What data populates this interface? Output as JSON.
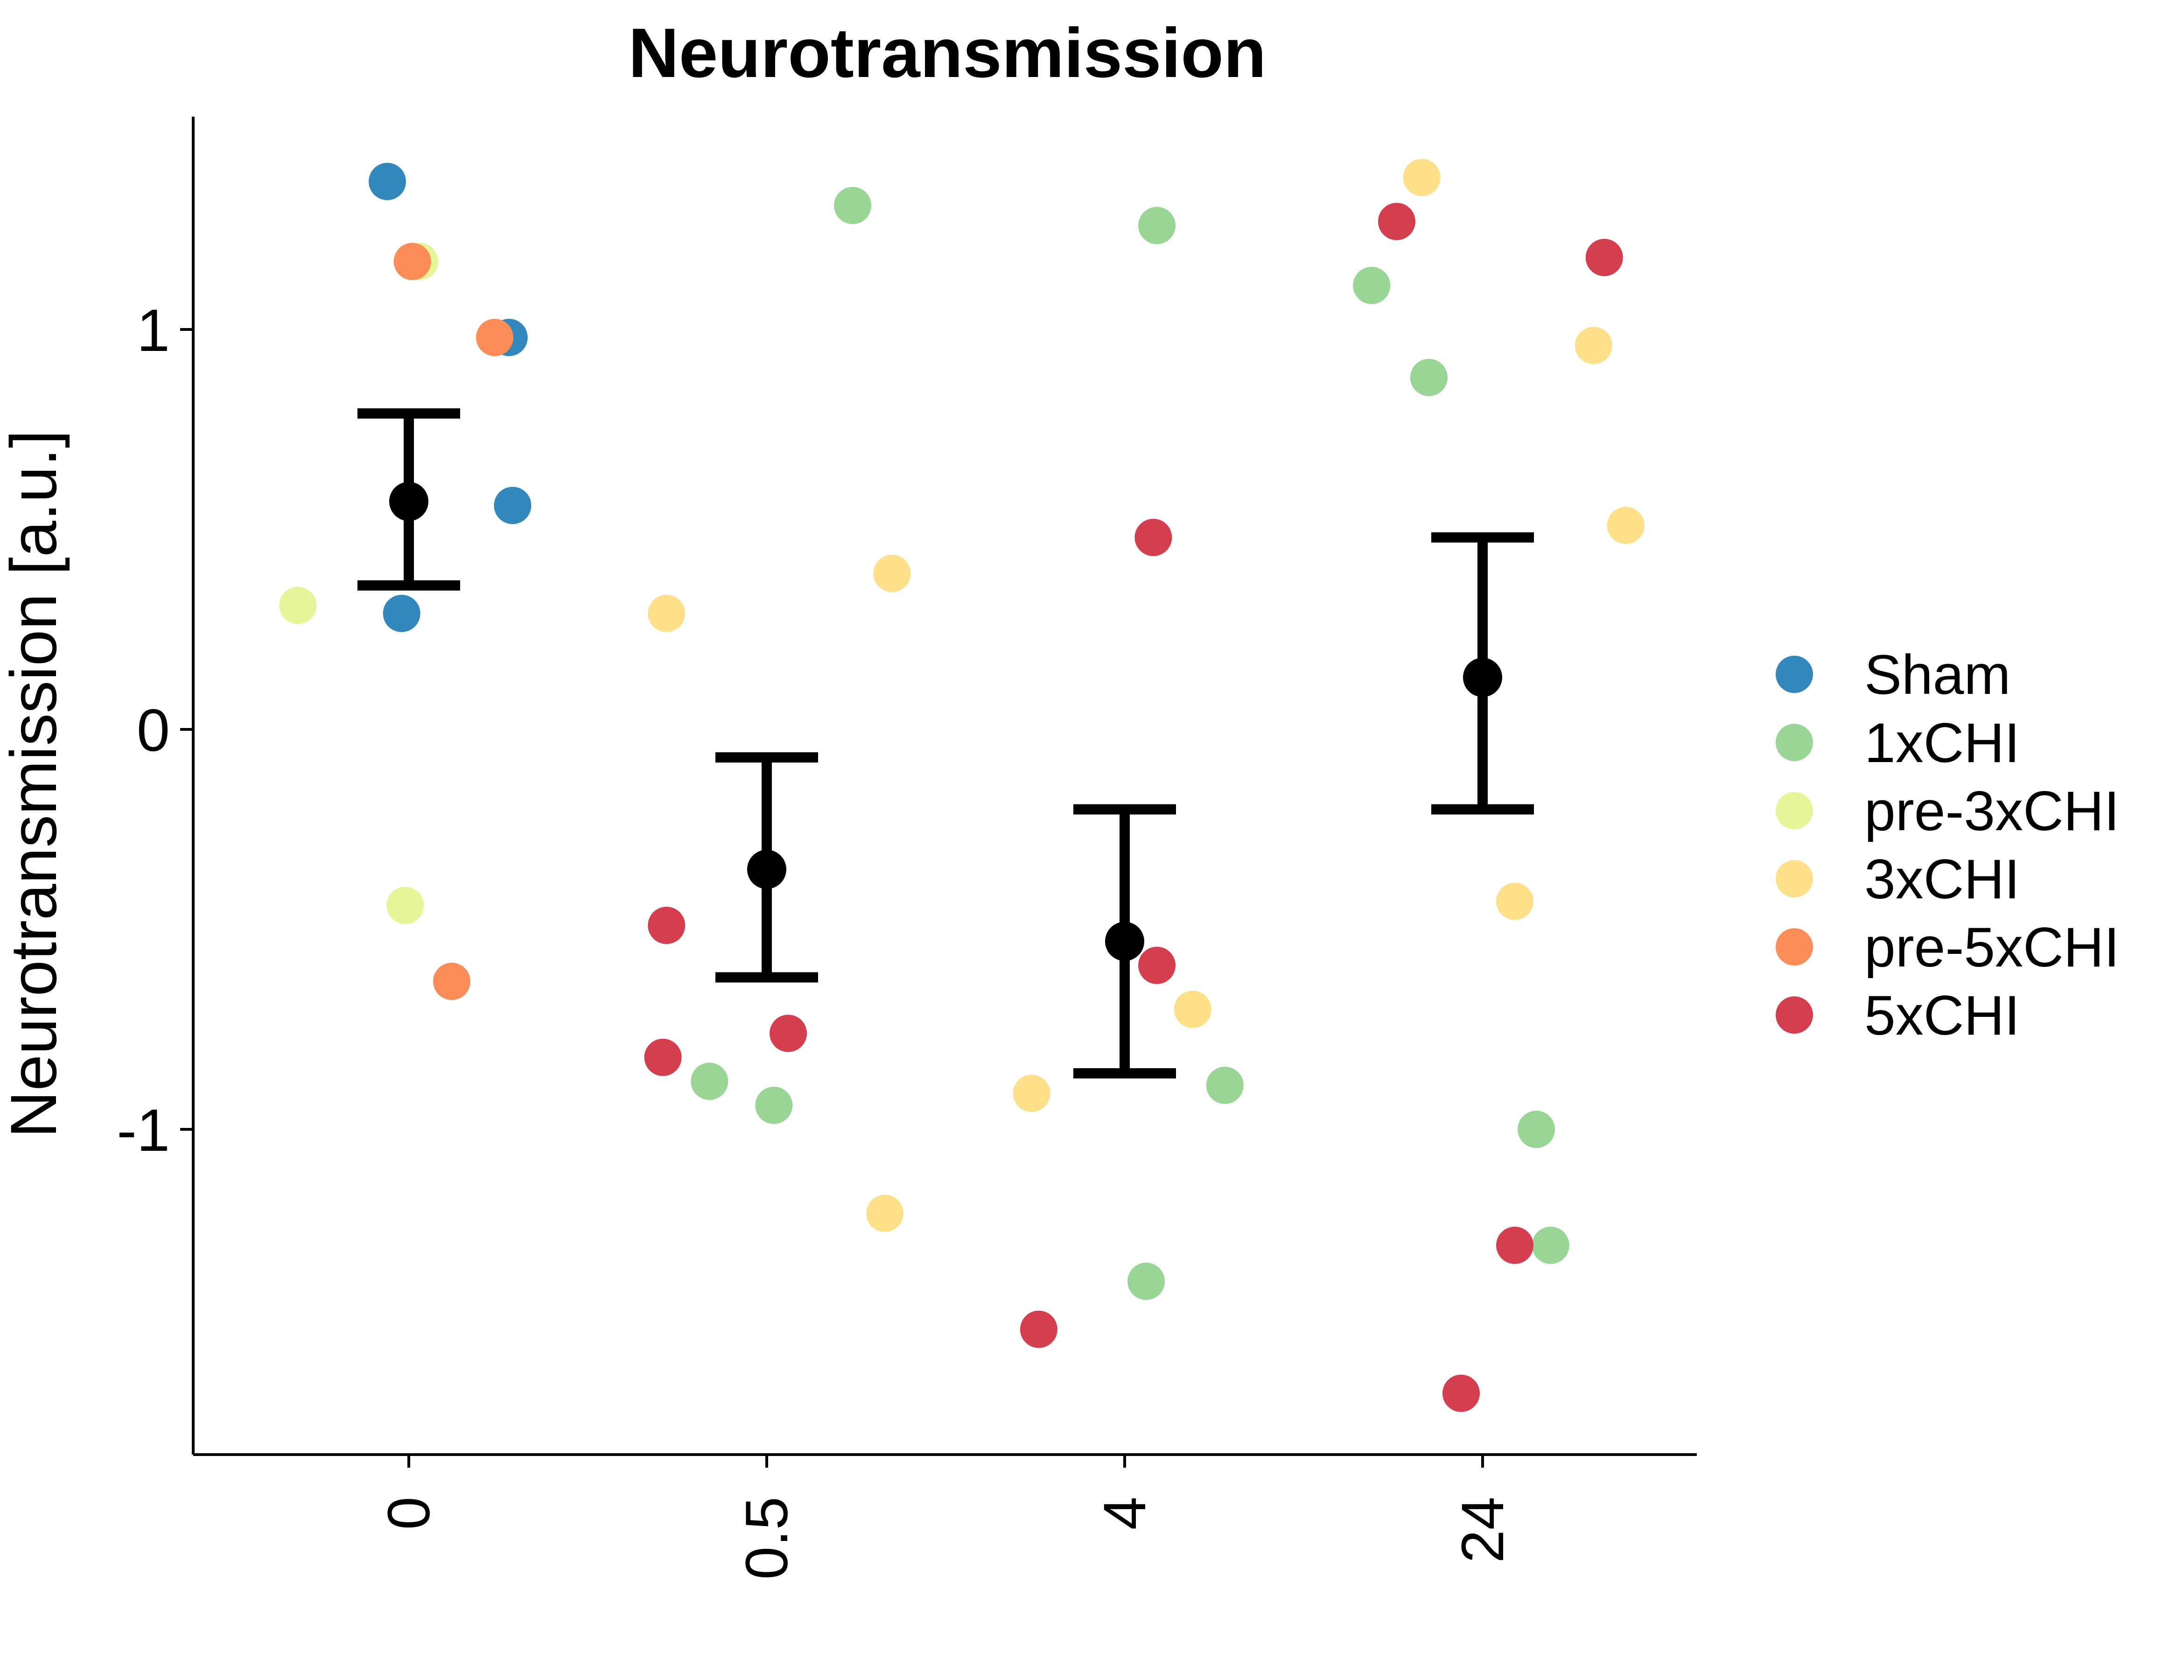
{
  "chart_data": {
    "type": "scatter",
    "title": "Neurotransmission",
    "xlabel": "",
    "ylabel": "Neurotransmission [a.u.]",
    "categories": [
      "0",
      "0.5",
      "4",
      "24"
    ],
    "y_ticks": [
      1,
      0,
      -1
    ],
    "y_tick_labels": [
      "1",
      "0",
      "-1"
    ],
    "ylim": [
      -1.82,
      1.53
    ],
    "legend_position": "right",
    "colors": {
      "Sham": "#3288BD",
      "1xCHI": "#99D594",
      "pre-3xCHI": "#E6F598",
      "3xCHI": "#FEE08B",
      "pre-5xCHI": "#FC8D59",
      "5xCHI": "#D53E4F",
      "summary": "#000000"
    },
    "groups": [
      "Sham",
      "1xCHI",
      "pre-3xCHI",
      "3xCHI",
      "pre-5xCHI",
      "5xCHI"
    ],
    "points": [
      {
        "group": "Sham",
        "x": -0.06,
        "y": 1.37
      },
      {
        "group": "pre-3xCHI",
        "x": 0.03,
        "y": 1.17
      },
      {
        "group": "pre-5xCHI",
        "x": 0.01,
        "y": 1.17
      },
      {
        "group": "Sham",
        "x": 0.28,
        "y": 0.98
      },
      {
        "group": "pre-5xCHI",
        "x": 0.24,
        "y": 0.98
      },
      {
        "group": "Sham",
        "x": 0.29,
        "y": 0.56
      },
      {
        "group": "pre-3xCHI",
        "x": -0.31,
        "y": 0.31
      },
      {
        "group": "Sham",
        "x": -0.02,
        "y": 0.29
      },
      {
        "group": "pre-3xCHI",
        "x": -0.01,
        "y": -0.44
      },
      {
        "group": "pre-5xCHI",
        "x": 0.12,
        "y": -0.63
      },
      {
        "group": "1xCHI",
        "x": 1.24,
        "y": 1.31
      },
      {
        "group": "3xCHI",
        "x": 1.35,
        "y": 0.39
      },
      {
        "group": "3xCHI",
        "x": 0.72,
        "y": 0.29
      },
      {
        "group": "5xCHI",
        "x": 0.72,
        "y": -0.49
      },
      {
        "group": "5xCHI",
        "x": 1.06,
        "y": -0.76
      },
      {
        "group": "5xCHI",
        "x": 0.71,
        "y": -0.82
      },
      {
        "group": "1xCHI",
        "x": 0.84,
        "y": -0.88
      },
      {
        "group": "1xCHI",
        "x": 1.02,
        "y": -0.94
      },
      {
        "group": "3xCHI",
        "x": 1.33,
        "y": -1.21
      },
      {
        "group": "1xCHI",
        "x": 2.09,
        "y": 1.26
      },
      {
        "group": "5xCHI",
        "x": 2.08,
        "y": 0.48
      },
      {
        "group": "5xCHI",
        "x": 2.09,
        "y": -0.59
      },
      {
        "group": "3xCHI",
        "x": 2.19,
        "y": -0.7
      },
      {
        "group": "3xCHI",
        "x": 1.74,
        "y": -0.91
      },
      {
        "group": "1xCHI",
        "x": 2.28,
        "y": -0.89
      },
      {
        "group": "1xCHI",
        "x": 2.06,
        "y": -1.38
      },
      {
        "group": "5xCHI",
        "x": 1.76,
        "y": -1.5
      },
      {
        "group": "3xCHI",
        "x": 2.83,
        "y": 1.38
      },
      {
        "group": "5xCHI",
        "x": 2.76,
        "y": 1.27
      },
      {
        "group": "5xCHI",
        "x": 3.34,
        "y": 1.18
      },
      {
        "group": "1xCHI",
        "x": 2.69,
        "y": 1.11
      },
      {
        "group": "3xCHI",
        "x": 3.31,
        "y": 0.96
      },
      {
        "group": "1xCHI",
        "x": 2.85,
        "y": 0.88
      },
      {
        "group": "3xCHI",
        "x": 3.4,
        "y": 0.51
      },
      {
        "group": "3xCHI",
        "x": 3.09,
        "y": -0.43
      },
      {
        "group": "1xCHI",
        "x": 3.15,
        "y": -1.0
      },
      {
        "group": "1xCHI",
        "x": 3.19,
        "y": -1.29
      },
      {
        "group": "5xCHI",
        "x": 3.09,
        "y": -1.29
      },
      {
        "group": "5xCHI",
        "x": 2.94,
        "y": -1.66
      }
    ],
    "summary": [
      {
        "category": "0",
        "mean": 0.57,
        "lower": 0.36,
        "upper": 0.79
      },
      {
        "category": "0.5",
        "mean": -0.35,
        "lower": -0.62,
        "upper": -0.07
      },
      {
        "category": "4",
        "mean": -0.53,
        "lower": -0.86,
        "upper": -0.2
      },
      {
        "category": "24",
        "mean": 0.13,
        "lower": -0.2,
        "upper": 0.48
      }
    ]
  }
}
